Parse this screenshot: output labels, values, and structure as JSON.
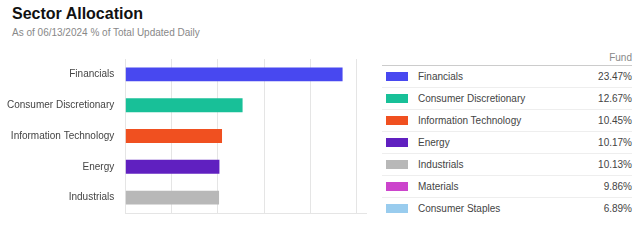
{
  "chart_data": [
    {
      "type": "bar",
      "title": "Sector Allocation",
      "subtitle": "As of 06/13/2024 % of Total Updated Daily",
      "orientation": "horizontal",
      "categories": [
        "Industrials",
        "Energy",
        "Information Technology",
        "Consumer Discretionary",
        "Financials"
      ],
      "values": [
        10.13,
        10.17,
        10.45,
        12.67,
        23.47
      ],
      "colors": [
        "#b8b8b8",
        "#6020c0",
        "#f05020",
        "#18c098",
        "#4848f0"
      ],
      "xlim": [
        0,
        26
      ],
      "xticks": [
        0,
        5,
        10,
        15,
        20,
        25
      ],
      "grid": true,
      "tick_labels": "y"
    },
    {
      "type": "table",
      "title": "Fund",
      "categories": [
        "Financials",
        "Consumer Discretionary",
        "Information Technology",
        "Energy",
        "Industrials",
        "Materials",
        "Consumer Staples"
      ],
      "values": [
        23.47,
        12.67,
        10.45,
        10.17,
        10.13,
        9.86,
        6.89
      ],
      "value_labels": [
        "23.47%",
        "12.67%",
        "10.45%",
        "10.17%",
        "10.13%",
        "9.86%",
        "6.89%"
      ],
      "colors": [
        "#4848f0",
        "#18c098",
        "#f05020",
        "#6020c0",
        "#b8b8b8",
        "#cc44cc",
        "#99ccee"
      ]
    }
  ]
}
